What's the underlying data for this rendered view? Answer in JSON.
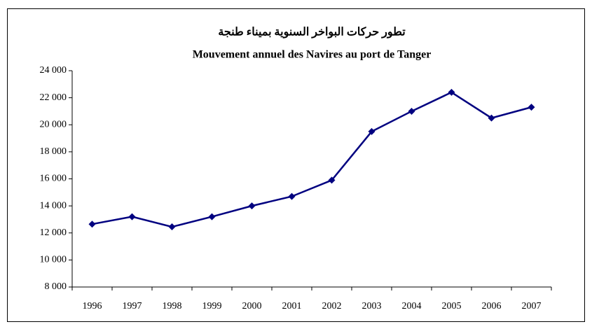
{
  "chart_data": {
    "type": "line",
    "title": "تطور حركات البواخر السنوية بميناء طنجة",
    "subtitle": "Mouvement annuel des Navires au port de Tanger",
    "categories": [
      "1996",
      "1997",
      "1998",
      "1999",
      "2000",
      "2001",
      "2002",
      "2003",
      "2004",
      "2005",
      "2006",
      "2007"
    ],
    "series": [
      {
        "color": "#000080",
        "values": [
          12650,
          13200,
          12450,
          13200,
          14000,
          14700,
          15900,
          19500,
          21000,
          22400,
          20500,
          21300
        ]
      }
    ],
    "ylim": [
      8000,
      24000
    ],
    "yticks": [
      {
        "value": 8000,
        "label": "8 000"
      },
      {
        "value": 10000,
        "label": "10 000"
      },
      {
        "value": 12000,
        "label": "12 000"
      },
      {
        "value": 14000,
        "label": "14 000"
      },
      {
        "value": 16000,
        "label": "16 000"
      },
      {
        "value": 18000,
        "label": "18 000"
      },
      {
        "value": 20000,
        "label": "20 000"
      },
      {
        "value": 22000,
        "label": "22 000"
      },
      {
        "value": 24000,
        "label": "24 000"
      }
    ],
    "grid": false
  }
}
